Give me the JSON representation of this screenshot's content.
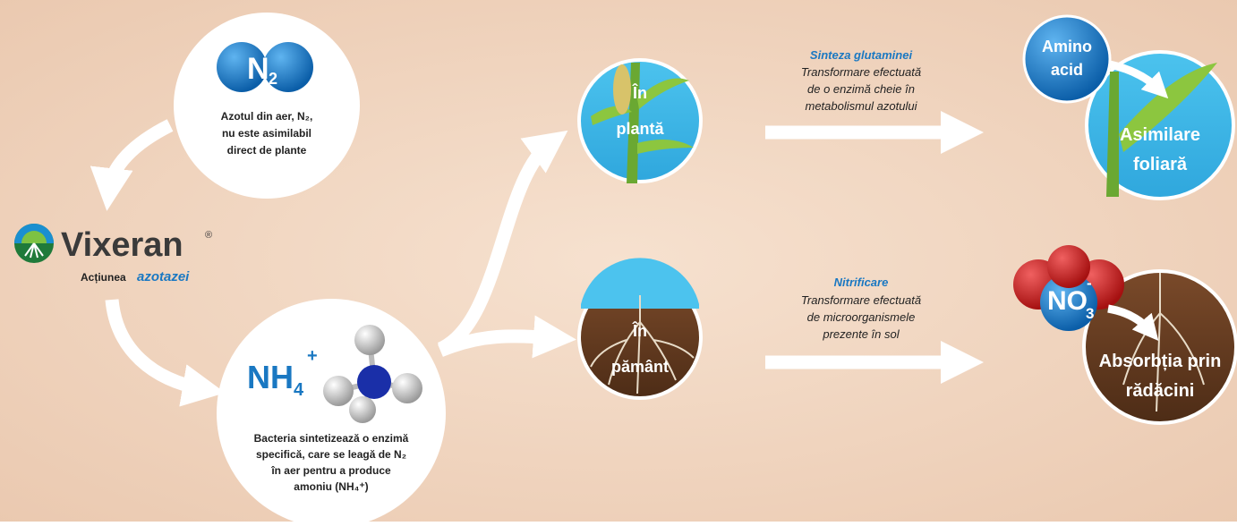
{
  "n2_node": {
    "symbol": "N",
    "subscript": "2",
    "lines": [
      "Azotul din aer, N₂,",
      "nu este asimilabil",
      "direct de plante"
    ]
  },
  "brand": {
    "name": "Vixeran",
    "mark": "®",
    "caption": "Acțiunea",
    "caption_highlight": "azotazei"
  },
  "nh4_node": {
    "symbol": "NH",
    "subscript": "4",
    "superscript": "+",
    "lines": [
      "Bacteria sintetizează o enzimă",
      "specifică, care se leagă de N₂",
      "în aer pentru a produce",
      "amoniu (NH₄⁺)"
    ]
  },
  "plant_node": {
    "lines": [
      "În",
      "plantă"
    ]
  },
  "soil_node": {
    "lines": [
      "În",
      "pământ"
    ]
  },
  "plant_process": {
    "title": "Sinteza glutaminei",
    "lines": [
      "Transformare efectuată",
      "de o enzimă cheie în",
      "metabolismul azotului"
    ]
  },
  "soil_process": {
    "title": "Nitrificare",
    "lines": [
      "Transformare efectuată",
      "de microorganismele",
      "prezente în sol"
    ]
  },
  "amino": {
    "lines": [
      "Amino",
      "acid"
    ]
  },
  "foliar": {
    "lines": [
      "Asimilare",
      "foliară"
    ]
  },
  "no3": {
    "symbol": "NO",
    "subscript": "3",
    "superscript": "-"
  },
  "roots": {
    "lines": [
      "Absorbția prin",
      "rădăcini"
    ]
  }
}
